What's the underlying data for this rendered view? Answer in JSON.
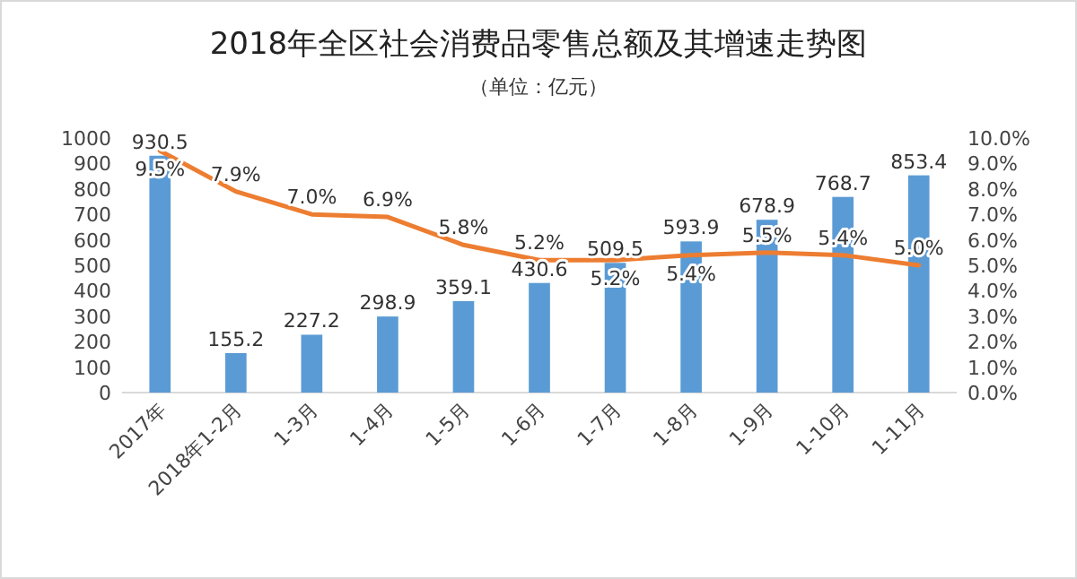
{
  "chart_data": {
    "type": "bar",
    "title": "2018年全区社会消费品零售总额及其增速走势图",
    "subtitle": "（单位：亿元）",
    "categories": [
      "2017年",
      "2018年1-2月",
      "1-3月",
      "1-4月",
      "1-5月",
      "1-6月",
      "1-7月",
      "1-8月",
      "1-9月",
      "1-10月",
      "1-11月"
    ],
    "series": [
      {
        "color": "#5b9bd5",
        "values": [
          930.5,
          155.2,
          227.2,
          298.9,
          359.1,
          430.6,
          509.5,
          593.9,
          678.9,
          768.7,
          853.4
        ],
        "value_labels": [
          "930.5",
          "155.2",
          "227.2",
          "298.9",
          "359.1",
          "430.6",
          "509.5",
          "593.9",
          "678.9",
          "768.7",
          "853.4"
        ]
      },
      {
        "type": "line",
        "axis": "y2",
        "color": "#ed7d31",
        "values": [
          9.5,
          7.9,
          7.0,
          6.9,
          5.8,
          5.2,
          5.2,
          5.4,
          5.5,
          5.4,
          5.0
        ],
        "value_labels": [
          "9.5%",
          "7.9%",
          "7.0%",
          "6.9%",
          "5.8%",
          "5.2%",
          "5.2%",
          "5.4%",
          "5.5%",
          "5.4%",
          "5.0%"
        ]
      }
    ],
    "ylim": [
      0,
      1000
    ],
    "yticks": [
      0,
      100,
      200,
      300,
      400,
      500,
      600,
      700,
      800,
      900,
      1000
    ],
    "y2lim": [
      0,
      10
    ],
    "y2ticks": [
      {
        "value": 0,
        "label": "0.0%"
      },
      {
        "value": 1,
        "label": "1.0%"
      },
      {
        "value": 2,
        "label": "2.0%"
      },
      {
        "value": 3,
        "label": "3.0%"
      },
      {
        "value": 4,
        "label": "4.0%"
      },
      {
        "value": 5,
        "label": "5.0%"
      },
      {
        "value": 6,
        "label": "6.0%"
      },
      {
        "value": 7,
        "label": "7.0%"
      },
      {
        "value": 8,
        "label": "8.0%"
      },
      {
        "value": 9,
        "label": "9.0%"
      },
      {
        "value": 10,
        "label": "10.0%"
      }
    ],
    "grid": false,
    "marker": "none",
    "line_style": "solid"
  }
}
